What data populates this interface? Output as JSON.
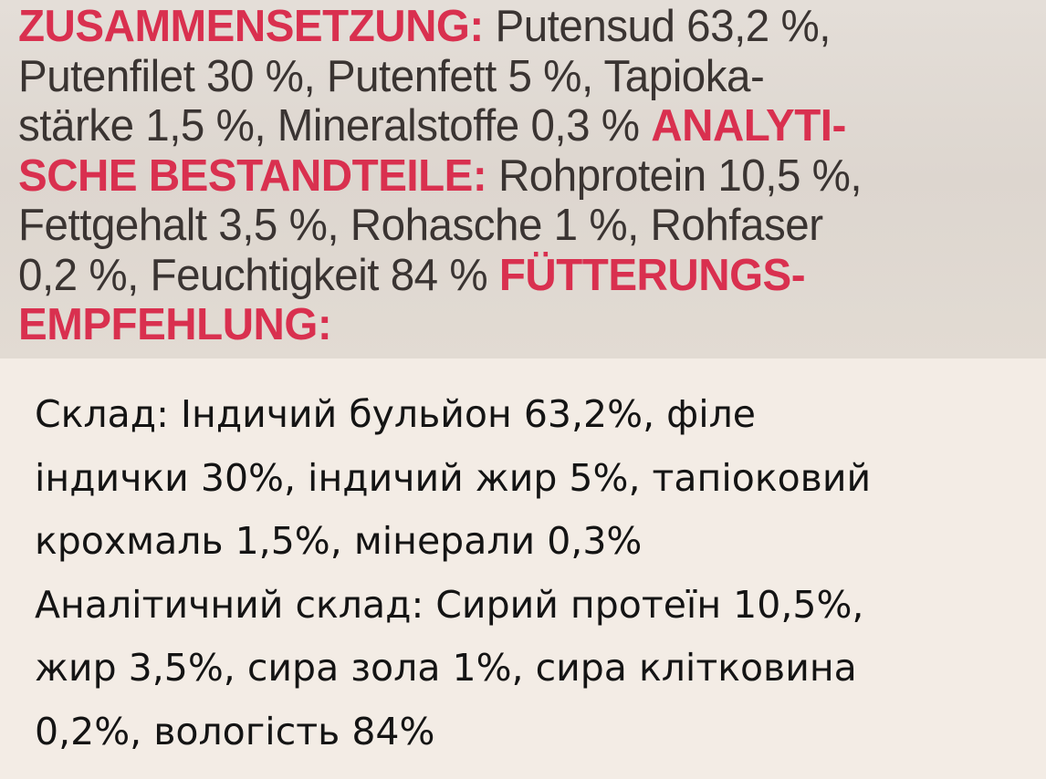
{
  "label_photo": {
    "lines": [
      [
        {
          "t": "ZUSAMMENSETZUNG:",
          "red": true
        },
        {
          "t": " Putensud 63,2 %,"
        }
      ],
      [
        {
          "t": "Putenfilet 30 %, Putenfett 5 %, Tapioka-"
        }
      ],
      [
        {
          "t": "stärke 1,5 %, Mineralstoffe 0,3 % "
        },
        {
          "t": "ANALYTI-",
          "red": true
        }
      ],
      [
        {
          "t": "SCHE BESTANDTEILE:",
          "red": true
        },
        {
          "t": " Rohprotein 10,5 %,"
        }
      ],
      [
        {
          "t": "Fettgehalt 3,5 %, Rohasche 1 %, Rohfaser"
        }
      ],
      [
        {
          "t": "0,2 %, Feuchtigkeit 84 % "
        },
        {
          "t": "FÜTTERUNGS-",
          "red": true
        }
      ],
      [
        {
          "t": "EMPFEHLUNG:",
          "red": true
        }
      ]
    ],
    "colors": {
      "accent_red": "#d9304f",
      "text": "#3a3432",
      "background": "#e0d9d2"
    }
  },
  "translation": {
    "lines": [
      "Склад: Індичий бульйон 63,2%, філе",
      "індички 30%, індичий жир 5%, тапіоковий",
      "крохмаль 1,5%, мінерали 0,3%",
      "Аналітичний склад: Сирий протеїн 10,5%,",
      "жир 3,5%, сира зола 1%, сира клітковина",
      "0,2%, вологість 84%"
    ]
  }
}
